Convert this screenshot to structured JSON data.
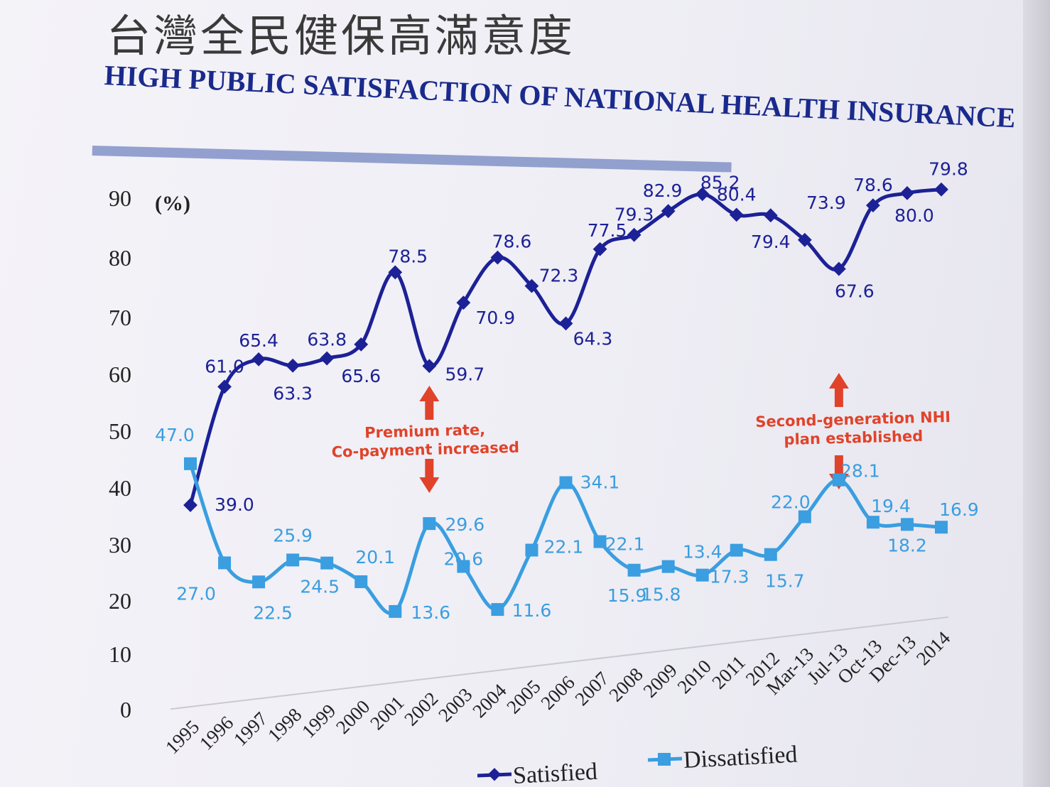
{
  "title_zh": "台灣全民健保高滿意度",
  "title_en": "HIGH PUBLIC SATISFACTION OF NATIONAL HEALTH INSURANCE",
  "chart_data": {
    "type": "line",
    "ylabel": "(%)",
    "ylim": [
      0,
      90
    ],
    "yticks": [
      "0",
      "10",
      "20",
      "30",
      "40",
      "50",
      "60",
      "70",
      "80",
      "90"
    ],
    "categories": [
      "1995",
      "1996",
      "1997",
      "1998",
      "1999",
      "2000",
      "2001",
      "2002",
      "2003",
      "2004",
      "2005",
      "2006",
      "2007",
      "2008",
      "2009",
      "2010",
      "2011",
      "2012",
      "Mar-13",
      "Jul-13",
      "Oct-13",
      "Dec-13",
      "2014"
    ],
    "series": [
      {
        "name": "Satisfied",
        "color": "#1c2196",
        "marker": "diamond",
        "values": [
          39.0,
          61.0,
          65.4,
          63.3,
          63.8,
          65.6,
          78.5,
          59.7,
          70.9,
          78.6,
          72.3,
          64.3,
          77.5,
          79.3,
          82.9,
          85.2,
          80.4,
          79.4,
          73.9,
          67.6,
          78.6,
          80.0,
          79.8
        ]
      },
      {
        "name": "Dissatisfied",
        "color": "#3a9ee0",
        "marker": "square",
        "values": [
          47.0,
          27.0,
          22.5,
          25.9,
          24.5,
          20.1,
          13.6,
          29.6,
          20.6,
          11.6,
          22.1,
          34.1,
          22.1,
          15.9,
          15.8,
          13.4,
          17.3,
          15.7,
          22.0,
          28.1,
          19.4,
          18.2,
          16.9
        ]
      }
    ],
    "legend": "bottom",
    "annotations": [
      {
        "text": [
          "Premium rate,",
          "Co-payment increased"
        ],
        "category": "2002",
        "color": "#e0432a"
      },
      {
        "text": [
          "Second-generation NHI",
          "plan established"
        ],
        "category": "Jul-13",
        "color": "#e0432a"
      }
    ]
  }
}
